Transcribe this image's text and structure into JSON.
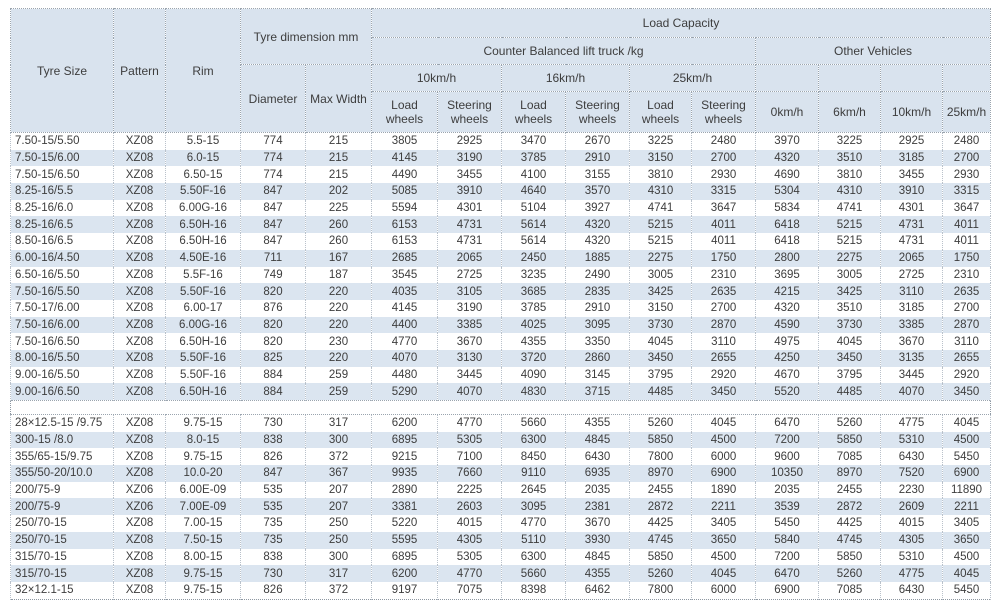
{
  "colors": {
    "header_bg": "#d9e3ee",
    "band_row_bg": "#dbe5f0",
    "text": "#3d3d3d",
    "border": "#9aa4ae"
  },
  "table": {
    "header": {
      "tyre_size": "Tyre Size",
      "pattern": "Pattern",
      "rim": "Rim",
      "tyre_dimension": "Tyre dimension mm",
      "diameter": "Diameter",
      "max_width": "Max Width",
      "load_capacity": "Load Capacity",
      "counter_balanced": "Counter Balanced lift truck /kg",
      "other_vehicles": "Other Vehicles",
      "speed_10": "10km/h",
      "speed_16": "16km/h",
      "speed_25": "25km/h",
      "load_wheels": "Load wheels",
      "steering_wheels": "Steering wheels",
      "ov_speeds": [
        "0km/h",
        "6km/h",
        "10km/h",
        "25km/h"
      ]
    },
    "column_keys": [
      "tyre-size",
      "pattern",
      "rim",
      "diameter",
      "max-width",
      "load-wheels-10",
      "steering-wheels-10",
      "load-wheels-16",
      "steering-wheels-16",
      "load-wheels-25",
      "steering-wheels-25",
      "other-0kmh",
      "other-6kmh",
      "other-10kmh",
      "other-25kmh"
    ],
    "sections": [
      {
        "rows": [
          [
            "7.50-15/5.50",
            "XZ08",
            "5.5-15",
            "774",
            "215",
            "3805",
            "2925",
            "3470",
            "2670",
            "3225",
            "2480",
            "3970",
            "3225",
            "2925",
            "2480"
          ],
          [
            "7.50-15/6.00",
            "XZ08",
            "6.0-15",
            "774",
            "215",
            "4145",
            "3190",
            "3785",
            "2910",
            "3150",
            "2700",
            "4320",
            "3510",
            "3185",
            "2700"
          ],
          [
            "7.50-15/6.50",
            "XZ08",
            "6.50-15",
            "774",
            "215",
            "4490",
            "3455",
            "4100",
            "3155",
            "3810",
            "2930",
            "4690",
            "3810",
            "3455",
            "2930"
          ],
          [
            "8.25-16/5.5",
            "XZ08",
            "5.50F-16",
            "847",
            "202",
            "5085",
            "3910",
            "4640",
            "3570",
            "4310",
            "3315",
            "5304",
            "4310",
            "3910",
            "3315"
          ],
          [
            "8.25-16/6.0",
            "XZ08",
            "6.00G-16",
            "847",
            "225",
            "5594",
            "4301",
            "5104",
            "3927",
            "4741",
            "3647",
            "5834",
            "4741",
            "4301",
            "3647"
          ],
          [
            "8.25-16/6.5",
            "XZ08",
            "6.50H-16",
            "847",
            "260",
            "6153",
            "4731",
            "5614",
            "4320",
            "5215",
            "4011",
            "6418",
            "5215",
            "4731",
            "4011"
          ],
          [
            "8.50-16/6.5",
            "XZ08",
            "6.50H-16",
            "847",
            "260",
            "6153",
            "4731",
            "5614",
            "4320",
            "5215",
            "4011",
            "6418",
            "5215",
            "4731",
            "4011"
          ],
          [
            "6.00-16/4.50",
            "XZ08",
            "4.50E-16",
            "711",
            "167",
            "2685",
            "2065",
            "2450",
            "1885",
            "2275",
            "1750",
            "2800",
            "2275",
            "2065",
            "1750"
          ],
          [
            "6.50-16/5.50",
            "XZ08",
            "5.5F-16",
            "749",
            "187",
            "3545",
            "2725",
            "3235",
            "2490",
            "3005",
            "2310",
            "3695",
            "3005",
            "2725",
            "2310"
          ],
          [
            "7.50-16/5.50",
            "XZ08",
            "5.50F-16",
            "820",
            "220",
            "4035",
            "3105",
            "3685",
            "2835",
            "3425",
            "2635",
            "4215",
            "3425",
            "3110",
            "2635"
          ],
          [
            "7.50-17/6.00",
            "XZ08",
            "6.00-17",
            "876",
            "220",
            "4145",
            "3190",
            "3785",
            "2910",
            "3150",
            "2700",
            "4320",
            "3510",
            "3185",
            "2700"
          ],
          [
            "7.50-16/6.00",
            "XZ08",
            "6.00G-16",
            "820",
            "220",
            "4400",
            "3385",
            "4025",
            "3095",
            "3730",
            "2870",
            "4590",
            "3730",
            "3385",
            "2870"
          ],
          [
            "7.50-16/6.50",
            "XZ08",
            "6.50H-16",
            "820",
            "230",
            "4770",
            "3670",
            "4355",
            "3350",
            "4045",
            "3110",
            "4975",
            "4045",
            "3670",
            "3110"
          ],
          [
            "8.00-16/5.50",
            "XZ08",
            "5.50F-16",
            "825",
            "220",
            "4070",
            "3130",
            "3720",
            "2860",
            "3450",
            "2655",
            "4250",
            "3450",
            "3135",
            "2655"
          ],
          [
            "9.00-16/5.50",
            "XZ08",
            "5.50F-16",
            "884",
            "259",
            "4480",
            "3445",
            "4090",
            "3145",
            "3795",
            "2920",
            "4670",
            "3795",
            "3445",
            "2920"
          ],
          [
            "9.00-16/6.50",
            "XZ08",
            "6.50H-16",
            "884",
            "259",
            "5290",
            "4070",
            "4830",
            "3715",
            "4485",
            "3450",
            "5520",
            "4485",
            "4070",
            "3450"
          ]
        ]
      },
      {
        "rows": [
          [
            "28×12.5-15 /9.75",
            "XZ08",
            "9.75-15",
            "730",
            "317",
            "6200",
            "4770",
            "5660",
            "4355",
            "5260",
            "4045",
            "6470",
            "5260",
            "4775",
            "4045"
          ],
          [
            "300-15 /8.0",
            "XZ08",
            "8.0-15",
            "838",
            "300",
            "6895",
            "5305",
            "6300",
            "4845",
            "5850",
            "4500",
            "7200",
            "5850",
            "5310",
            "4500"
          ],
          [
            "355/65-15/9.75",
            "XZ08",
            "9.75-15",
            "826",
            "372",
            "9215",
            "7100",
            "8450",
            "6430",
            "7800",
            "6000",
            "9600",
            "7085",
            "6430",
            "5450"
          ],
          [
            "355/50-20/10.0",
            "XZ08",
            "10.0-20",
            "847",
            "367",
            "9935",
            "7660",
            "9110",
            "6935",
            "8970",
            "6900",
            "10350",
            "8970",
            "7520",
            "6900"
          ],
          [
            "200/75-9",
            "XZ06",
            "6.00E-09",
            "535",
            "207",
            "2890",
            "2225",
            "2645",
            "2035",
            "2455",
            "1890",
            "2035",
            "2455",
            "2230",
            "11890"
          ],
          [
            "200/75-9",
            "XZ06",
            "7.00E-09",
            "535",
            "207",
            "3381",
            "2603",
            "3095",
            "2381",
            "2872",
            "2211",
            "3539",
            "2872",
            "2609",
            "2211"
          ],
          [
            "250/70-15",
            "XZ08",
            "7.00-15",
            "735",
            "250",
            "5220",
            "4015",
            "4770",
            "3670",
            "4425",
            "3405",
            "5450",
            "4425",
            "4015",
            "3405"
          ],
          [
            "250/70-15",
            "XZ08",
            "7.50-15",
            "735",
            "250",
            "5595",
            "4305",
            "5110",
            "3930",
            "4745",
            "3650",
            "5840",
            "4745",
            "4305",
            "3650"
          ],
          [
            "315/70-15",
            "XZ08",
            "8.00-15",
            "838",
            "300",
            "6895",
            "5305",
            "6300",
            "4845",
            "5850",
            "4500",
            "7200",
            "5850",
            "5310",
            "4500"
          ],
          [
            "315/70-15",
            "XZ08",
            "9.75-15",
            "730",
            "317",
            "6200",
            "4770",
            "5660",
            "4355",
            "5260",
            "4045",
            "6470",
            "5260",
            "4775",
            "4045"
          ],
          [
            "32×12.1-15",
            "XZ08",
            "9.75-15",
            "826",
            "372",
            "9197",
            "7075",
            "8398",
            "6462",
            "7800",
            "6000",
            "6900",
            "7085",
            "6430",
            "5450"
          ]
        ]
      }
    ]
  }
}
